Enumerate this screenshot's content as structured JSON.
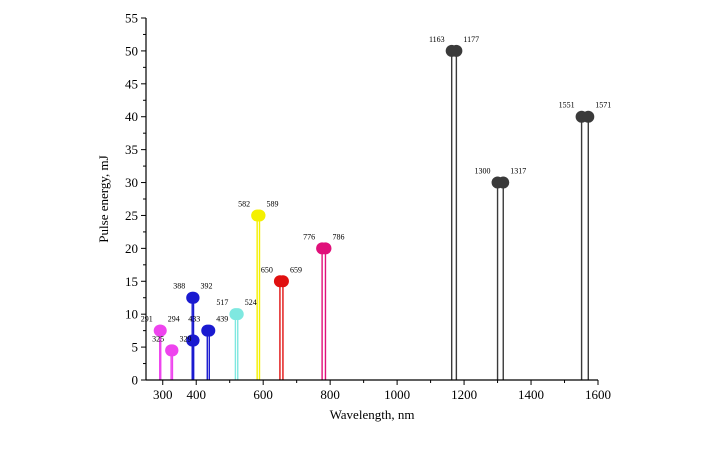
{
  "chart_data": {
    "type": "scatter",
    "title": "",
    "xlabel": "Wavelength, nm",
    "ylabel": "Pulse energy, mJ",
    "xlim": [
      250,
      1600
    ],
    "ylim": [
      0,
      55
    ],
    "xticks": [
      "300",
      "400",
      "600",
      "800",
      "1000",
      "1200",
      "1400",
      "1600"
    ],
    "xtick_values": [
      300,
      400,
      600,
      800,
      1000,
      1200,
      1400,
      1600
    ],
    "yticks": [
      "0",
      "5",
      "10",
      "15",
      "20",
      "25",
      "30",
      "35",
      "40",
      "45",
      "50",
      "55"
    ],
    "ytick_values": [
      0,
      5,
      10,
      15,
      20,
      25,
      30,
      35,
      40,
      45,
      50,
      55
    ],
    "grid": false,
    "legend": "none",
    "series": [
      {
        "color": "#ee44ee",
        "points": [
          {
            "x": 291,
            "y": 7.5,
            "label": "291"
          },
          {
            "x": 294,
            "y": 7.5,
            "label": "294"
          }
        ]
      },
      {
        "color": "#ee44ee",
        "points": [
          {
            "x": 325,
            "y": 4.5,
            "label": "325"
          },
          {
            "x": 329,
            "y": 4.5,
            "label": "329"
          }
        ]
      },
      {
        "color": "#1a1ad0",
        "points": [
          {
            "x": 388,
            "y": 12.5,
            "label": "388"
          },
          {
            "x": 392,
            "y": 12.5,
            "label": "392"
          }
        ]
      },
      {
        "color": "#1a1ad0",
        "points": [
          {
            "x": 388,
            "y": 6,
            "label": ""
          },
          {
            "x": 392,
            "y": 6,
            "label": ""
          }
        ]
      },
      {
        "color": "#1a1ad0",
        "points": [
          {
            "x": 433,
            "y": 7.5,
            "label": "433"
          },
          {
            "x": 439,
            "y": 7.5,
            "label": "439"
          }
        ]
      },
      {
        "color": "#7fe8e0",
        "points": [
          {
            "x": 517,
            "y": 10,
            "label": "517"
          },
          {
            "x": 524,
            "y": 10,
            "label": "524"
          }
        ]
      },
      {
        "color": "#f4f000",
        "points": [
          {
            "x": 582,
            "y": 25,
            "label": "582"
          },
          {
            "x": 589,
            "y": 25,
            "label": "589"
          }
        ]
      },
      {
        "color": "#e01010",
        "points": [
          {
            "x": 650,
            "y": 15,
            "label": "650"
          },
          {
            "x": 659,
            "y": 15,
            "label": "659"
          }
        ]
      },
      {
        "color": "#e0107a",
        "points": [
          {
            "x": 776,
            "y": 20,
            "label": "776"
          },
          {
            "x": 786,
            "y": 20,
            "label": "786"
          }
        ]
      },
      {
        "color": "#3a3a3a",
        "points": [
          {
            "x": 1163,
            "y": 50,
            "label": "1163"
          },
          {
            "x": 1177,
            "y": 50,
            "label": "1177"
          }
        ]
      },
      {
        "color": "#3a3a3a",
        "points": [
          {
            "x": 1300,
            "y": 30,
            "label": "1300"
          },
          {
            "x": 1317,
            "y": 30,
            "label": "1317"
          }
        ]
      },
      {
        "color": "#3a3a3a",
        "points": [
          {
            "x": 1551,
            "y": 40,
            "label": "1551"
          },
          {
            "x": 1571,
            "y": 40,
            "label": "1571"
          }
        ]
      }
    ]
  }
}
